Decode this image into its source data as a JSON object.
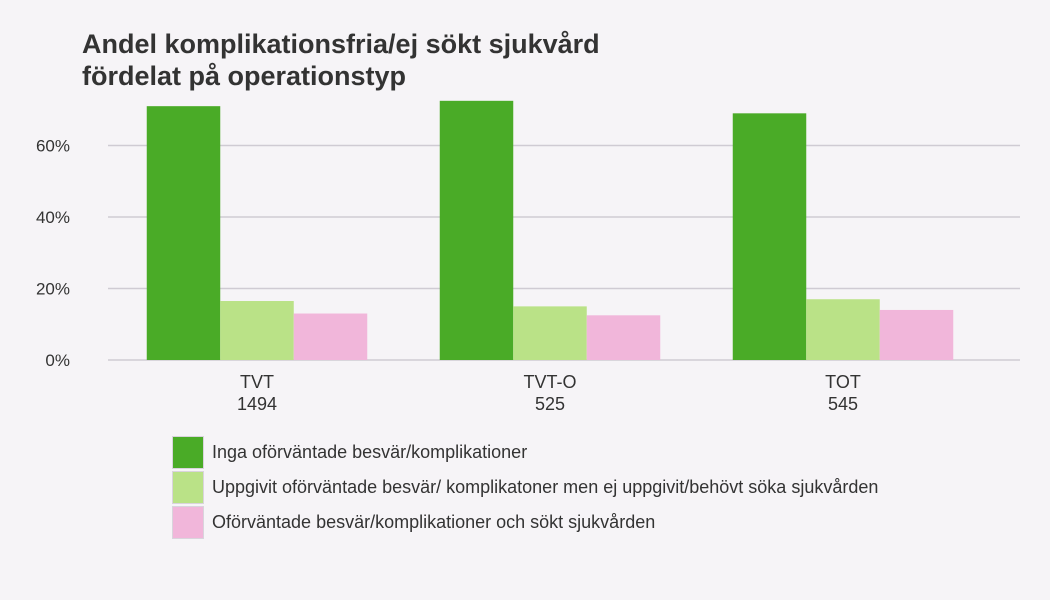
{
  "chart_data": {
    "type": "bar",
    "title": [
      "Andel komplikationsfria/ej sökt sjukvård",
      "fördelat på operationstyp"
    ],
    "xlabel": "",
    "ylabel": "",
    "categories": [
      {
        "name": "TVT",
        "n": "1494"
      },
      {
        "name": "TVT-O",
        "n": "525"
      },
      {
        "name": "TOT",
        "n": "545"
      }
    ],
    "series": [
      {
        "name": "Inga oförväntade besvär/komplikationer",
        "color": "#4aab27",
        "values": [
          71,
          72.5,
          69
        ]
      },
      {
        "name": "Uppgivit oförväntade besvär/ komplikatoner men ej uppgivit/behövt söka sjukvården",
        "color": "#bae287",
        "values": [
          16.5,
          15,
          17
        ]
      },
      {
        "name": "Oförväntade besvär/komplikationer och sökt sjukvården",
        "color": "#f1b6da",
        "values": [
          13,
          12.5,
          14
        ]
      }
    ],
    "yticks": [
      0,
      20,
      40,
      60
    ],
    "ytick_labels": [
      "0%",
      "20%",
      "40%",
      "60%"
    ],
    "ylim": [
      0,
      75
    ],
    "grid": true,
    "legend_position": "bottom-left"
  }
}
